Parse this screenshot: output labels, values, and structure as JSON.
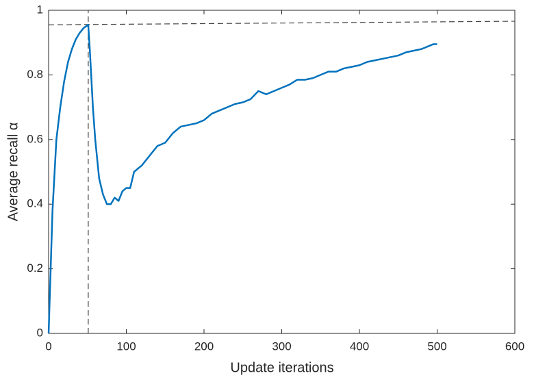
{
  "chart_data": {
    "type": "line",
    "xlabel": "Update iterations",
    "ylabel": "Average recall α",
    "x": [
      0,
      2,
      5,
      10,
      15,
      20,
      25,
      30,
      35,
      40,
      45,
      51,
      53,
      57,
      60,
      65,
      70,
      75,
      80,
      85,
      90,
      95,
      100,
      105,
      110,
      120,
      130,
      140,
      150,
      160,
      170,
      180,
      190,
      200,
      210,
      220,
      230,
      240,
      250,
      260,
      270,
      280,
      290,
      300,
      310,
      320,
      330,
      340,
      350,
      360,
      370,
      380,
      390,
      400,
      410,
      420,
      430,
      440,
      450,
      460,
      470,
      480,
      490,
      495,
      500
    ],
    "series": [
      {
        "name": "Average recall",
        "color": "#0072bd",
        "values": [
          0,
          0.15,
          0.38,
          0.6,
          0.7,
          0.78,
          0.84,
          0.88,
          0.91,
          0.93,
          0.945,
          0.955,
          0.88,
          0.7,
          0.6,
          0.48,
          0.43,
          0.4,
          0.4,
          0.42,
          0.41,
          0.44,
          0.45,
          0.45,
          0.5,
          0.52,
          0.55,
          0.58,
          0.59,
          0.62,
          0.64,
          0.645,
          0.65,
          0.66,
          0.68,
          0.69,
          0.7,
          0.71,
          0.715,
          0.725,
          0.75,
          0.74,
          0.75,
          0.76,
          0.77,
          0.785,
          0.785,
          0.79,
          0.8,
          0.81,
          0.81,
          0.82,
          0.825,
          0.83,
          0.84,
          0.845,
          0.85,
          0.855,
          0.86,
          0.87,
          0.875,
          0.88,
          0.89,
          0.895,
          0.895
        ]
      }
    ],
    "guides": [
      {
        "x": [
          51,
          51
        ],
        "y": [
          0,
          1
        ]
      },
      {
        "x": [
          0,
          600
        ],
        "y": [
          0.955,
          0.966
        ]
      }
    ],
    "guide_color": "#444444",
    "xlim": [
      0,
      600
    ],
    "xticks": [
      0,
      100,
      200,
      300,
      400,
      500,
      600
    ],
    "ylim": [
      0,
      1
    ],
    "yticks": [
      0,
      0.2,
      0.4,
      0.6,
      0.8,
      1
    ],
    "grid": false
  }
}
